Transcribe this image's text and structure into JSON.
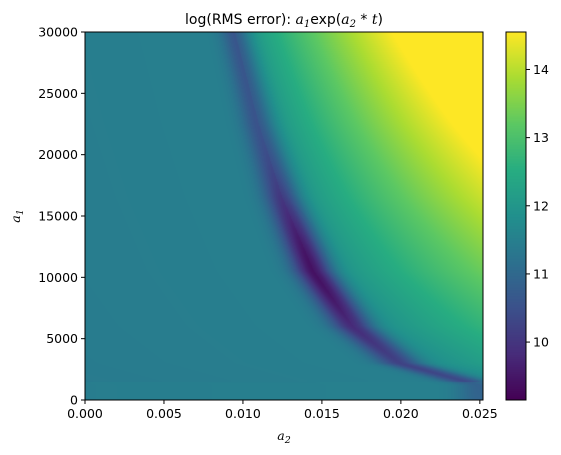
{
  "chart_data": {
    "type": "heatmap",
    "title_parts": {
      "prefix": "log(RMS error): ",
      "a1_base": "a",
      "a1_sub": "1",
      "exp_text": "exp(",
      "a2_base": "a",
      "a2_sub": "2",
      "times": " * ",
      "t": "t",
      "close": ")"
    },
    "xlabel": {
      "base": "a",
      "sub": "2"
    },
    "ylabel": {
      "base": "a",
      "sub": "1"
    },
    "xlim": [
      0.0,
      0.0252
    ],
    "ylim": [
      0,
      30000
    ],
    "x_ticks": [
      {
        "value": 0.0,
        "label": "0.000"
      },
      {
        "value": 0.005,
        "label": "0.005"
      },
      {
        "value": 0.01,
        "label": "0.010"
      },
      {
        "value": 0.015,
        "label": "0.015"
      },
      {
        "value": 0.02,
        "label": "0.020"
      },
      {
        "value": 0.025,
        "label": "0.025"
      }
    ],
    "y_ticks": [
      {
        "value": 0,
        "label": "0"
      },
      {
        "value": 5000,
        "label": "5000"
      },
      {
        "value": 10000,
        "label": "10000"
      },
      {
        "value": 15000,
        "label": "15000"
      },
      {
        "value": 20000,
        "label": "20000"
      },
      {
        "value": 25000,
        "label": "25000"
      },
      {
        "value": 30000,
        "label": "30000"
      }
    ],
    "colorbar": {
      "colormap": "viridis",
      "vmin": 9.15,
      "vmax": 14.55,
      "ticks": [
        {
          "value": 10,
          "label": "10"
        },
        {
          "value": 11,
          "label": "11"
        },
        {
          "value": 12,
          "label": "12"
        },
        {
          "value": 13,
          "label": "13"
        },
        {
          "value": 14,
          "label": "14"
        }
      ]
    },
    "background_value": 11.5,
    "valley": {
      "description_points": [
        {
          "a2": 0.0095,
          "a1": 30000
        },
        {
          "a2": 0.011,
          "a1": 22500
        },
        {
          "a2": 0.0125,
          "a1": 16500
        },
        {
          "a2": 0.0145,
          "a1": 10500
        },
        {
          "a2": 0.017,
          "a1": 6000
        },
        {
          "a2": 0.02,
          "a1": 3000
        },
        {
          "a2": 0.025,
          "a1": 1200
        }
      ],
      "min_value": 9.15,
      "min_at": {
        "a2": 0.0145,
        "a1": 10500
      }
    },
    "max_value": 14.55,
    "max_at": {
      "a2": 0.025,
      "a1": 30000
    }
  }
}
